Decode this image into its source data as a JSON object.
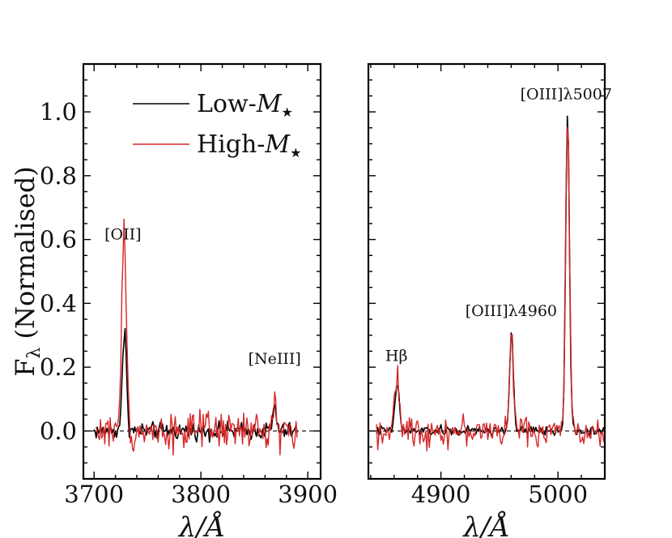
{
  "chart_data": [
    {
      "type": "line",
      "panel": "left",
      "xlabel": "λ/Å",
      "ylabel": "F",
      "ylabel_sub": "λ",
      "ylabel_rest": " (Normalised)",
      "xlim": [
        3690,
        3912
      ],
      "ylim": [
        -0.15,
        1.15
      ],
      "xticks": [
        3700,
        3800,
        3900
      ],
      "xtick_labels": [
        "3700",
        "3800",
        "3900"
      ],
      "yticks": [
        0.0,
        0.2,
        0.4,
        0.6,
        0.8,
        1.0
      ],
      "ytick_labels": [
        "0.0",
        "0.2",
        "0.4",
        "0.6",
        "0.8",
        "1.0"
      ],
      "zero_line": 0.0,
      "legend": {
        "location": "top-right",
        "entries": [
          {
            "label": "Low-",
            "math": "M",
            "sub": "★",
            "color": "#000000"
          },
          {
            "label": "High-",
            "math": "M",
            "sub": "★",
            "color": "#d62728"
          }
        ]
      },
      "annotations": [
        {
          "text": "[OII]",
          "x": 3727,
          "y": 0.6
        },
        {
          "text": "[NeIII]",
          "x": 3869,
          "y": 0.21
        }
      ],
      "series": [
        {
          "name": "Low-M★",
          "color": "#000000",
          "x_start": 3700,
          "x_end": 3890,
          "dx": 1,
          "lines": [
            {
              "center": 3727,
              "amp": 0.17,
              "sigma": 1.6
            },
            {
              "center": 3729.5,
              "amp": 0.24,
              "sigma": 1.4
            },
            {
              "center": 3869,
              "amp": 0.08,
              "sigma": 1.5
            }
          ],
          "noise": 0.02
        },
        {
          "name": "High-M★",
          "color": "#d62728",
          "x_start": 3702,
          "x_end": 3890,
          "dx": 1,
          "lines": [
            {
              "center": 3727,
              "amp": 0.5,
              "sigma": 1.5
            },
            {
              "center": 3729.5,
              "amp": 0.4,
              "sigma": 1.4
            },
            {
              "center": 3869,
              "amp": 0.1,
              "sigma": 1.5
            }
          ],
          "noise": 0.045
        }
      ]
    },
    {
      "type": "line",
      "panel": "right",
      "xlabel": "λ/Å",
      "xlim": [
        4838,
        5040
      ],
      "ylim": [
        -0.15,
        1.15
      ],
      "xticks": [
        4900,
        5000
      ],
      "xtick_labels": [
        "4900",
        "5000"
      ],
      "zero_line": 0.0,
      "annotations": [
        {
          "text": "Hβ",
          "x": 4862,
          "y": 0.22
        },
        {
          "text": "[OIII]λ4960",
          "x": 4960,
          "y": 0.36
        },
        {
          "text": "[OIII]λ5007",
          "x": 5007,
          "y": 1.04
        }
      ],
      "series": [
        {
          "name": "Low-M★",
          "color": "#000000",
          "x_start": 4845,
          "x_end": 5040,
          "dx": 1,
          "lines": [
            {
              "center": 4862.7,
              "amp": 0.15,
              "sigma": 1.8
            },
            {
              "center": 4960.3,
              "amp": 0.31,
              "sigma": 1.6
            },
            {
              "center": 5008.2,
              "amp": 1.0,
              "sigma": 1.6
            }
          ],
          "noise": 0.012
        },
        {
          "name": "High-M★",
          "color": "#d62728",
          "x_start": 4845,
          "x_end": 5040,
          "dx": 1,
          "lines": [
            {
              "center": 4862.7,
              "amp": 0.17,
              "sigma": 1.8
            },
            {
              "center": 4960.3,
              "amp": 0.3,
              "sigma": 1.6
            },
            {
              "center": 5008.2,
              "amp": 1.0,
              "sigma": 1.6
            }
          ],
          "noise": 0.035
        }
      ]
    }
  ]
}
